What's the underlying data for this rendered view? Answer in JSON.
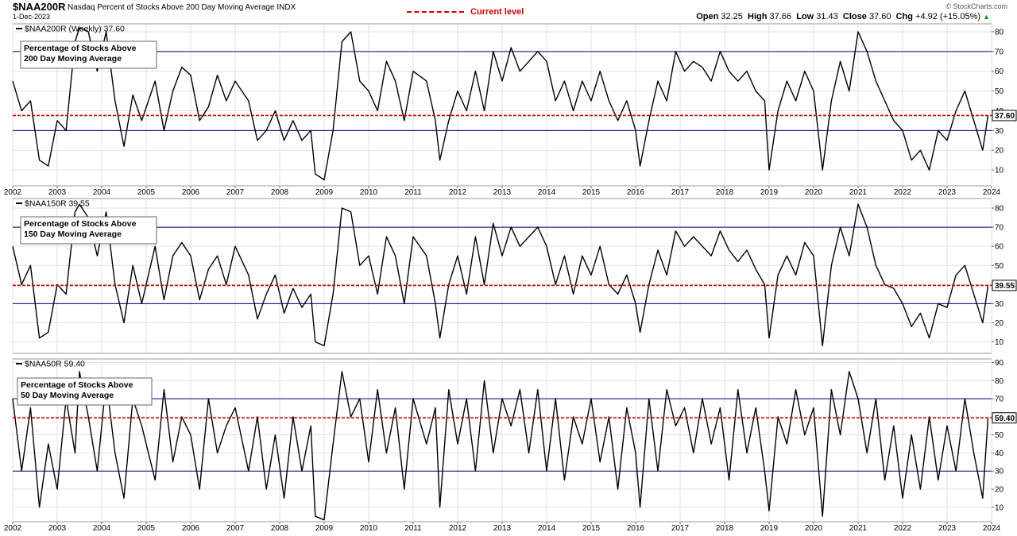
{
  "header": {
    "symbol": "$NAA200R",
    "description": "Nasdaq Percent of Stocks Above 200 Day Moving Average",
    "exchange": "INDX",
    "date": "1-Dec-2023",
    "legend_label": "Current level",
    "credit": "© StockCharts.com",
    "ohlc": {
      "open_label": "Open",
      "open": "32.25",
      "high_label": "High",
      "high": "37.66",
      "low_label": "Low",
      "low": "31.43",
      "close_label": "Close",
      "close": "37.60",
      "chg_label": "Chg",
      "chg": "+4.92 (+15.05%)",
      "chg_arrow": "▲"
    }
  },
  "colors": {
    "line": "#000000",
    "reference_line": "#000080",
    "current_level": "#cc0000",
    "grid": "#e2e2e2",
    "background": "#ffffff"
  },
  "chart_data": [
    {
      "type": "line",
      "series_label": "$NAA200R (Weekly) 37.60",
      "title": "Percentage of Stocks Above 200 Day Moving Average",
      "title_lines": [
        "Percentage of Stocks Above",
        "200 Day Moving Average"
      ],
      "ylim": [
        2,
        84
      ],
      "yticks": [
        10,
        20,
        30,
        40,
        50,
        60,
        70,
        80
      ],
      "reference_lines": [
        30,
        70
      ],
      "current_level": 37.6,
      "current_label": "37.60",
      "x": [
        2002.0,
        2002.2,
        2002.4,
        2002.6,
        2002.8,
        2003.0,
        2003.2,
        2003.4,
        2003.5,
        2003.7,
        2003.9,
        2004.1,
        2004.3,
        2004.5,
        2004.7,
        2004.9,
        2005.2,
        2005.4,
        2005.6,
        2005.8,
        2006.0,
        2006.2,
        2006.4,
        2006.6,
        2006.8,
        2007.0,
        2007.3,
        2007.5,
        2007.7,
        2007.9,
        2008.1,
        2008.3,
        2008.5,
        2008.7,
        2008.8,
        2009.0,
        2009.2,
        2009.4,
        2009.6,
        2009.8,
        2010.0,
        2010.2,
        2010.4,
        2010.6,
        2010.8,
        2011.0,
        2011.3,
        2011.5,
        2011.6,
        2011.8,
        2012.0,
        2012.2,
        2012.4,
        2012.6,
        2012.8,
        2013.0,
        2013.2,
        2013.4,
        2013.6,
        2013.8,
        2014.0,
        2014.2,
        2014.4,
        2014.6,
        2014.8,
        2015.0,
        2015.2,
        2015.4,
        2015.6,
        2015.8,
        2016.0,
        2016.1,
        2016.3,
        2016.5,
        2016.7,
        2016.9,
        2017.1,
        2017.3,
        2017.5,
        2017.7,
        2017.9,
        2018.1,
        2018.3,
        2018.5,
        2018.7,
        2018.9,
        2019.0,
        2019.2,
        2019.4,
        2019.6,
        2019.8,
        2020.0,
        2020.2,
        2020.4,
        2020.6,
        2020.8,
        2021.0,
        2021.2,
        2021.4,
        2021.6,
        2021.8,
        2022.0,
        2022.2,
        2022.4,
        2022.6,
        2022.8,
        2023.0,
        2023.2,
        2023.4,
        2023.6,
        2023.8,
        2023.92
      ],
      "y": [
        55,
        40,
        45,
        15,
        12,
        35,
        30,
        75,
        82,
        80,
        60,
        80,
        45,
        22,
        48,
        35,
        55,
        30,
        50,
        62,
        58,
        35,
        42,
        58,
        45,
        55,
        45,
        25,
        30,
        40,
        25,
        35,
        25,
        30,
        8,
        5,
        30,
        75,
        80,
        55,
        50,
        40,
        65,
        55,
        35,
        60,
        55,
        35,
        15,
        35,
        50,
        40,
        60,
        40,
        70,
        55,
        72,
        60,
        65,
        70,
        65,
        45,
        55,
        40,
        55,
        45,
        60,
        45,
        35,
        45,
        30,
        12,
        35,
        55,
        45,
        70,
        60,
        65,
        62,
        55,
        70,
        60,
        55,
        60,
        50,
        45,
        10,
        40,
        55,
        45,
        60,
        50,
        10,
        45,
        65,
        50,
        80,
        70,
        55,
        45,
        35,
        30,
        15,
        20,
        10,
        30,
        25,
        40,
        50,
        35,
        20,
        37.6
      ]
    },
    {
      "type": "line",
      "series_label": "$NAA150R 39.55",
      "title": "Percentage of Stocks Above 150 Day Moving Average",
      "title_lines": [
        "Percentage of Stocks Above",
        "150 Day Moving Average"
      ],
      "ylim": [
        4,
        85
      ],
      "yticks": [
        10,
        20,
        30,
        40,
        50,
        60,
        70,
        80
      ],
      "reference_lines": [
        30,
        70
      ],
      "current_level": 39.55,
      "current_label": "39.55",
      "x": [
        2002.0,
        2002.2,
        2002.4,
        2002.6,
        2002.8,
        2003.0,
        2003.2,
        2003.4,
        2003.5,
        2003.7,
        2003.9,
        2004.1,
        2004.3,
        2004.5,
        2004.7,
        2004.9,
        2005.2,
        2005.4,
        2005.6,
        2005.8,
        2006.0,
        2006.2,
        2006.4,
        2006.6,
        2006.8,
        2007.0,
        2007.3,
        2007.5,
        2007.7,
        2007.9,
        2008.1,
        2008.3,
        2008.5,
        2008.7,
        2008.8,
        2009.0,
        2009.2,
        2009.4,
        2009.6,
        2009.8,
        2010.0,
        2010.2,
        2010.4,
        2010.6,
        2010.8,
        2011.0,
        2011.3,
        2011.5,
        2011.6,
        2011.8,
        2012.0,
        2012.2,
        2012.4,
        2012.6,
        2012.8,
        2013.0,
        2013.2,
        2013.4,
        2013.6,
        2013.8,
        2014.0,
        2014.2,
        2014.4,
        2014.6,
        2014.8,
        2015.0,
        2015.2,
        2015.4,
        2015.6,
        2015.8,
        2016.0,
        2016.1,
        2016.3,
        2016.5,
        2016.7,
        2016.9,
        2017.1,
        2017.3,
        2017.5,
        2017.7,
        2017.9,
        2018.1,
        2018.3,
        2018.5,
        2018.7,
        2018.9,
        2019.0,
        2019.2,
        2019.4,
        2019.6,
        2019.8,
        2020.0,
        2020.2,
        2020.4,
        2020.6,
        2020.8,
        2021.0,
        2021.2,
        2021.4,
        2021.6,
        2021.8,
        2022.0,
        2022.2,
        2022.4,
        2022.6,
        2022.8,
        2023.0,
        2023.2,
        2023.4,
        2023.6,
        2023.8,
        2023.92
      ],
      "y": [
        60,
        40,
        50,
        12,
        15,
        40,
        35,
        78,
        82,
        75,
        55,
        78,
        40,
        20,
        50,
        30,
        60,
        32,
        55,
        62,
        55,
        32,
        48,
        55,
        40,
        60,
        45,
        22,
        35,
        45,
        25,
        38,
        28,
        35,
        10,
        8,
        35,
        80,
        78,
        50,
        55,
        35,
        65,
        55,
        30,
        65,
        55,
        30,
        12,
        40,
        55,
        35,
        65,
        40,
        72,
        55,
        70,
        60,
        65,
        70,
        60,
        40,
        55,
        35,
        55,
        45,
        60,
        40,
        35,
        45,
        30,
        15,
        40,
        58,
        45,
        68,
        60,
        65,
        60,
        55,
        68,
        58,
        52,
        58,
        48,
        40,
        12,
        45,
        55,
        45,
        62,
        55,
        8,
        50,
        70,
        55,
        82,
        70,
        50,
        40,
        38,
        30,
        18,
        25,
        12,
        30,
        28,
        45,
        50,
        35,
        20,
        39.55
      ]
    },
    {
      "type": "line",
      "series_label": "$NAA50R 59.40",
      "title": "Percentage of Stocks Above 50 Day Moving Average",
      "title_lines": [
        "Percentage of Stocks Above",
        "50 Day Moving Average"
      ],
      "ylim": [
        2,
        92
      ],
      "yticks": [
        10,
        20,
        30,
        40,
        50,
        60,
        70,
        80,
        90
      ],
      "reference_lines": [
        30,
        70
      ],
      "current_level": 59.4,
      "current_label": "59.40",
      "x": [
        2002.0,
        2002.2,
        2002.4,
        2002.6,
        2002.8,
        2003.0,
        2003.2,
        2003.4,
        2003.5,
        2003.7,
        2003.9,
        2004.1,
        2004.3,
        2004.5,
        2004.7,
        2004.9,
        2005.2,
        2005.4,
        2005.6,
        2005.8,
        2006.0,
        2006.2,
        2006.4,
        2006.6,
        2006.8,
        2007.0,
        2007.3,
        2007.5,
        2007.7,
        2007.9,
        2008.1,
        2008.3,
        2008.5,
        2008.7,
        2008.8,
        2009.0,
        2009.2,
        2009.4,
        2009.6,
        2009.8,
        2010.0,
        2010.2,
        2010.4,
        2010.6,
        2010.8,
        2011.0,
        2011.3,
        2011.5,
        2011.6,
        2011.8,
        2012.0,
        2012.2,
        2012.4,
        2012.6,
        2012.8,
        2013.0,
        2013.2,
        2013.4,
        2013.6,
        2013.8,
        2014.0,
        2014.2,
        2014.4,
        2014.6,
        2014.8,
        2015.0,
        2015.2,
        2015.4,
        2015.6,
        2015.8,
        2016.0,
        2016.1,
        2016.3,
        2016.5,
        2016.7,
        2016.9,
        2017.1,
        2017.3,
        2017.5,
        2017.7,
        2017.9,
        2018.1,
        2018.3,
        2018.5,
        2018.7,
        2018.9,
        2019.0,
        2019.2,
        2019.4,
        2019.6,
        2019.8,
        2020.0,
        2020.2,
        2020.4,
        2020.6,
        2020.8,
        2021.0,
        2021.2,
        2021.4,
        2021.6,
        2021.8,
        2022.0,
        2022.2,
        2022.4,
        2022.6,
        2022.8,
        2023.0,
        2023.2,
        2023.4,
        2023.6,
        2023.8,
        2023.92
      ],
      "y": [
        70,
        30,
        65,
        10,
        45,
        20,
        70,
        40,
        85,
        60,
        30,
        80,
        40,
        15,
        70,
        55,
        25,
        75,
        35,
        60,
        50,
        20,
        70,
        40,
        55,
        65,
        30,
        60,
        20,
        50,
        15,
        60,
        30,
        55,
        5,
        3,
        45,
        85,
        60,
        70,
        35,
        75,
        40,
        65,
        20,
        70,
        45,
        65,
        10,
        75,
        45,
        70,
        30,
        80,
        40,
        70,
        55,
        75,
        40,
        75,
        30,
        70,
        25,
        60,
        45,
        70,
        35,
        60,
        20,
        65,
        40,
        10,
        70,
        30,
        75,
        55,
        65,
        40,
        70,
        45,
        65,
        25,
        75,
        40,
        65,
        30,
        8,
        60,
        45,
        75,
        50,
        65,
        5,
        75,
        50,
        85,
        70,
        40,
        70,
        25,
        55,
        15,
        50,
        20,
        60,
        25,
        55,
        30,
        70,
        40,
        15,
        59.4
      ]
    }
  ],
  "x_axis": {
    "range": [
      2002.0,
      2024.0
    ],
    "ticks": [
      2002,
      2003,
      2004,
      2005,
      2006,
      2007,
      2008,
      2009,
      2010,
      2011,
      2012,
      2013,
      2014,
      2015,
      2016,
      2017,
      2018,
      2019,
      2020,
      2021,
      2022,
      2023,
      2024
    ],
    "tick_labels": [
      "2002",
      "2003",
      "2004",
      "2005",
      "2006",
      "2007",
      "2008",
      "2009",
      "2010",
      "2011",
      "2012",
      "2013",
      "2014",
      "2015",
      "2016",
      "2017",
      "2018",
      "2019",
      "2020",
      "2021",
      "2022",
      "2023",
      "2024"
    ]
  }
}
